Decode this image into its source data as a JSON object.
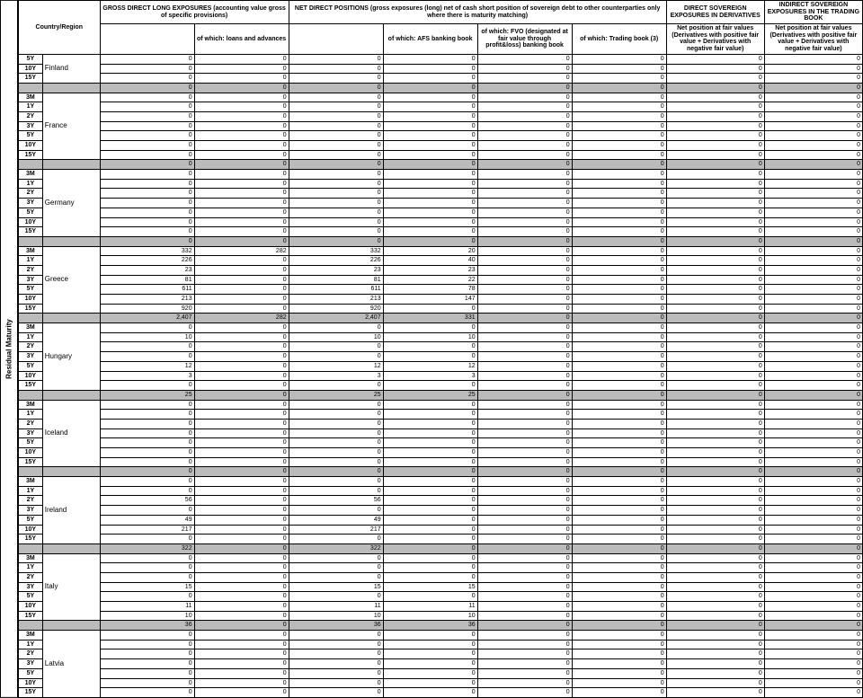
{
  "vertHeader": "Residual Maturity",
  "headers": {
    "countryRegion": "Country/Region",
    "gross": "GROSS DIRECT LONG EXPOSURES (accounting value gross of specific provisions)",
    "netDirect": "NET DIRECT POSITIONS\n(gross exposures (long) net of cash short position of sovereign debt to other counterparties only where there is maturity matching)",
    "dirSov": "DIRECT SOVEREIGN EXPOSURES IN DERIVATIVES",
    "indSov": "INDIRECT SOVEREIGN EXPOSURES IN THE TRADING BOOK",
    "loans": "of which: loans and advances",
    "afs": "of which: AFS banking book",
    "fvo": "of which: FVO (designated at fair value through profit&loss) banking book",
    "trading": "of which: Trading book (3)",
    "netPos": "Net position at fair values (Derivatives with positive fair value + Derivatives with negative fair value)"
  },
  "maturities": [
    "3M",
    "1Y",
    "2Y",
    "3Y",
    "5Y",
    "10Y",
    "15Y"
  ],
  "prelude": [
    {
      "mat": "5Y",
      "country": "Finland",
      "vals": [
        0,
        0,
        0,
        0,
        0,
        0,
        0,
        0
      ]
    },
    {
      "mat": "10Y",
      "vals": [
        0,
        0,
        0,
        0,
        0,
        0,
        0,
        0
      ]
    },
    {
      "mat": "15Y",
      "vals": [
        0,
        0,
        0,
        0,
        0,
        0,
        0,
        0
      ]
    }
  ],
  "preludeTotal": [
    0,
    0,
    0,
    0,
    0,
    0,
    0,
    0
  ],
  "blocks": [
    {
      "country": "France",
      "rows": [
        [
          0,
          0,
          0,
          0,
          0,
          0,
          0,
          0
        ],
        [
          0,
          0,
          0,
          0,
          0,
          0,
          0,
          0
        ],
        [
          0,
          0,
          0,
          0,
          0,
          0,
          0,
          0
        ],
        [
          0,
          0,
          0,
          0,
          0,
          0,
          0,
          0
        ],
        [
          0,
          0,
          0,
          0,
          0,
          0,
          0,
          0
        ],
        [
          0,
          0,
          0,
          0,
          0,
          0,
          0,
          0
        ],
        [
          0,
          0,
          0,
          0,
          0,
          0,
          0,
          0
        ]
      ],
      "total": [
        0,
        0,
        0,
        0,
        0,
        0,
        0,
        0
      ]
    },
    {
      "country": "Germany",
      "rows": [
        [
          0,
          0,
          0,
          0,
          0,
          0,
          0,
          0
        ],
        [
          0,
          0,
          0,
          0,
          0,
          0,
          0,
          0
        ],
        [
          0,
          0,
          0,
          0,
          0,
          0,
          0,
          0
        ],
        [
          0,
          0,
          0,
          0,
          0,
          0,
          0,
          0
        ],
        [
          0,
          0,
          0,
          0,
          0,
          0,
          0,
          0
        ],
        [
          0,
          0,
          0,
          0,
          0,
          0,
          0,
          0
        ],
        [
          0,
          0,
          0,
          0,
          0,
          0,
          0,
          0
        ]
      ],
      "total": [
        0,
        0,
        0,
        0,
        0,
        0,
        0,
        0
      ]
    },
    {
      "country": "Greece",
      "rows": [
        [
          332,
          282,
          332,
          20,
          0,
          0,
          0,
          0
        ],
        [
          226,
          0,
          226,
          40,
          0,
          0,
          0,
          0
        ],
        [
          23,
          0,
          23,
          23,
          0,
          0,
          0,
          0
        ],
        [
          81,
          0,
          81,
          22,
          0,
          0,
          0,
          0
        ],
        [
          611,
          0,
          611,
          78,
          0,
          0,
          0,
          0
        ],
        [
          213,
          0,
          213,
          147,
          0,
          0,
          0,
          0
        ],
        [
          920,
          0,
          920,
          0,
          0,
          0,
          0,
          0
        ]
      ],
      "total": [
        "2,407",
        282,
        "2,407",
        331,
        0,
        0,
        0,
        0
      ]
    },
    {
      "country": "Hungary",
      "rows": [
        [
          0,
          0,
          0,
          0,
          0,
          0,
          0,
          0
        ],
        [
          10,
          0,
          10,
          10,
          0,
          0,
          0,
          0
        ],
        [
          0,
          0,
          0,
          0,
          0,
          0,
          0,
          0
        ],
        [
          0,
          0,
          0,
          0,
          0,
          0,
          0,
          0
        ],
        [
          12,
          0,
          12,
          12,
          0,
          0,
          0,
          0
        ],
        [
          3,
          0,
          3,
          3,
          0,
          0,
          0,
          0
        ],
        [
          0,
          0,
          0,
          0,
          0,
          0,
          0,
          0
        ]
      ],
      "total": [
        25,
        0,
        25,
        25,
        0,
        0,
        0,
        0
      ]
    },
    {
      "country": "Iceland",
      "rows": [
        [
          0,
          0,
          0,
          0,
          0,
          0,
          0,
          0
        ],
        [
          0,
          0,
          0,
          0,
          0,
          0,
          0,
          0
        ],
        [
          0,
          0,
          0,
          0,
          0,
          0,
          0,
          0
        ],
        [
          0,
          0,
          0,
          0,
          0,
          0,
          0,
          0
        ],
        [
          0,
          0,
          0,
          0,
          0,
          0,
          0,
          0
        ],
        [
          0,
          0,
          0,
          0,
          0,
          0,
          0,
          0
        ],
        [
          0,
          0,
          0,
          0,
          0,
          0,
          0,
          0
        ]
      ],
      "total": [
        0,
        0,
        0,
        0,
        0,
        0,
        0,
        0
      ]
    },
    {
      "country": "Ireland",
      "rows": [
        [
          0,
          0,
          0,
          0,
          0,
          0,
          0,
          0
        ],
        [
          0,
          0,
          0,
          0,
          0,
          0,
          0,
          0
        ],
        [
          56,
          0,
          56,
          0,
          0,
          0,
          0,
          0
        ],
        [
          0,
          0,
          0,
          0,
          0,
          0,
          0,
          0
        ],
        [
          49,
          0,
          49,
          0,
          0,
          0,
          0,
          0
        ],
        [
          217,
          0,
          217,
          0,
          0,
          0,
          0,
          0
        ],
        [
          0,
          0,
          0,
          0,
          0,
          0,
          0,
          0
        ]
      ],
      "total": [
        322,
        0,
        322,
        0,
        0,
        0,
        0,
        0
      ]
    },
    {
      "country": "Italy",
      "rows": [
        [
          0,
          0,
          0,
          0,
          0,
          0,
          0,
          0
        ],
        [
          0,
          0,
          0,
          0,
          0,
          0,
          0,
          0
        ],
        [
          0,
          0,
          0,
          0,
          0,
          0,
          0,
          0
        ],
        [
          15,
          0,
          15,
          15,
          0,
          0,
          0,
          0
        ],
        [
          0,
          0,
          0,
          0,
          0,
          0,
          0,
          0
        ],
        [
          11,
          0,
          11,
          11,
          0,
          0,
          0,
          0
        ],
        [
          10,
          0,
          10,
          10,
          0,
          0,
          0,
          0
        ]
      ],
      "total": [
        36,
        0,
        36,
        36,
        0,
        0,
        0,
        0
      ]
    },
    {
      "country": "Latvia",
      "rows": [
        [
          0,
          0,
          0,
          0,
          0,
          0,
          0,
          0
        ],
        [
          0,
          0,
          0,
          0,
          0,
          0,
          0,
          0
        ],
        [
          0,
          0,
          0,
          0,
          0,
          0,
          0,
          0
        ],
        [
          0,
          0,
          0,
          0,
          0,
          0,
          0,
          0
        ],
        [
          0,
          0,
          0,
          0,
          0,
          0,
          0,
          0
        ],
        [
          0,
          0,
          0,
          0,
          0,
          0,
          0,
          0
        ],
        [
          0,
          0,
          0,
          0,
          0,
          0,
          0,
          0
        ]
      ]
    }
  ]
}
